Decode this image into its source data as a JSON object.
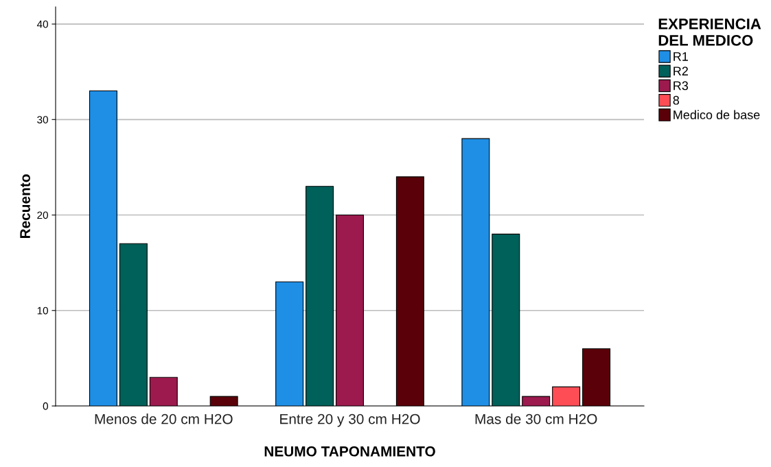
{
  "chart_data": {
    "type": "bar",
    "xlabel": "NEUMO TAPONAMIENTO",
    "ylabel": "Recuento",
    "legend_title": "EXPERIENCIA\nDEL MEDICO",
    "categories": [
      "Menos de 20 cm H2O",
      "Entre 20 y 30 cm H2O",
      "Mas de 30 cm H2O"
    ],
    "series": [
      {
        "name": "R1",
        "color": "#1f8fe6",
        "values": [
          33,
          13,
          28
        ]
      },
      {
        "name": "R2",
        "color": "#00605a",
        "values": [
          17,
          23,
          18
        ]
      },
      {
        "name": "R3",
        "color": "#9c1a4e",
        "values": [
          3,
          20,
          1
        ]
      },
      {
        "name": "8",
        "color": "#ff4d55",
        "values": [
          null,
          null,
          2
        ]
      },
      {
        "name": "Medico de base",
        "color": "#5a0008",
        "values": [
          1,
          24,
          6
        ]
      }
    ],
    "ylim": [
      0,
      41.8
    ],
    "yticks": [
      0,
      10,
      20,
      30,
      40
    ],
    "grid": "y",
    "legend": "top right"
  }
}
